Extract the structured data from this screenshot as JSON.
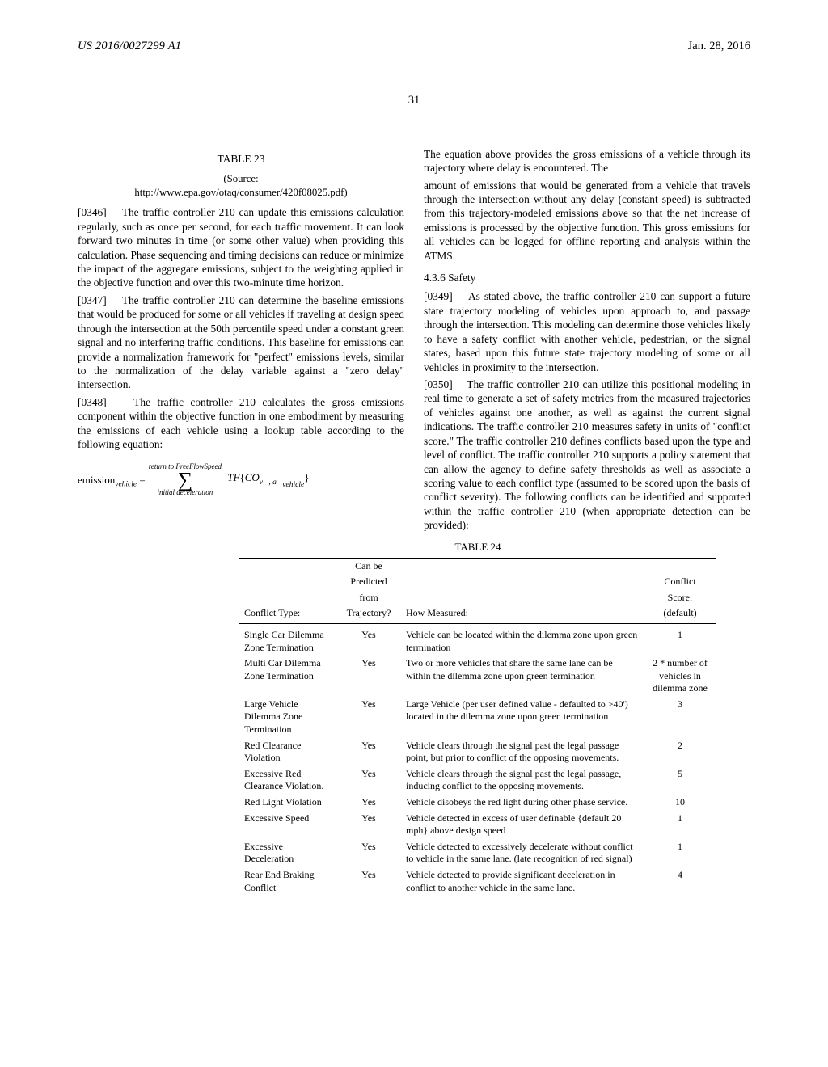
{
  "header": {
    "publication": "US 2016/0027299 A1",
    "date": "Jan. 28, 2016",
    "page_number": "31"
  },
  "left_col": {
    "table23_heading": "TABLE 23",
    "source_label": "(Source:",
    "source_url": "http://www.epa.gov/otaq/consumer/420f08025.pdf)",
    "p0346_num": "[0346]",
    "p0346": "The traffic controller 210 can update this emissions calculation regularly, such as once per second, for each traffic movement. It can look forward two minutes in time (or some other value) when providing this calculation. Phase sequencing and timing decisions can reduce or minimize the impact of the aggregate emissions, subject to the weighting applied in the objective function and over this two-minute time horizon.",
    "p0347_num": "[0347]",
    "p0347": "The traffic controller 210 can determine the baseline emissions that would be produced for some or all vehicles if traveling at design speed through the intersection at the 50th percentile speed under a constant green signal and no interfering traffic conditions. This baseline for emissions can provide a normalization framework for \"perfect\" emissions levels, similar to the normalization of the delay variable against a \"zero delay\" intersection.",
    "p0348_num": "[0348]",
    "p0348": "The traffic controller 210 calculates the gross emissions component within the objective function in one embodiment by measuring the emissions of each vehicle using a lookup table according to the following equation:",
    "eq_lhs_text": "emission",
    "eq_lhs_sub": "vehicle",
    "eq_equals": " = ",
    "eq_sum_top": "return to FreeFlowSpeed",
    "eq_sum_bottom": "initial deceleration",
    "eq_TF": "TF",
    "eq_CO": "CO",
    "eq_CO_sub": "v⃗, a⃗",
    "eq_CO_sub2": "vehicle",
    "p_after_eq": "The equation above provides the gross emissions of a vehicle through its trajectory where delay is encountered. The"
  },
  "right_col": {
    "p_cont": "amount of emissions that would be generated from a vehicle that travels through the intersection without any delay (constant speed) is subtracted from this trajectory-modeled emissions above so that the net increase of emissions is processed by the objective function. This gross emissions for all vehicles can be logged for offline reporting and analysis within the ATMS.",
    "safety_heading": "4.3.6 Safety",
    "p0349_num": "[0349]",
    "p0349": "As stated above, the traffic controller 210 can support a future state trajectory modeling of vehicles upon approach to, and passage through the intersection. This modeling can determine those vehicles likely to have a safety conflict with another vehicle, pedestrian, or the signal states, based upon this future state trajectory modeling of some or all vehicles in proximity to the intersection.",
    "p0350_num": "[0350]",
    "p0350": "The traffic controller 210 can utilize this positional modeling in real time to generate a set of safety metrics from the measured trajectories of vehicles against one another, as well as against the current signal indications. The traffic controller 210 measures safety in units of \"conflict score.\" The traffic controller 210 defines conflicts based upon the type and level of conflict. The traffic controller 210 supports a policy statement that can allow the agency to define safety thresholds as well as associate a scoring value to each conflict type (assumed to be scored upon the basis of conflict severity). The following conflicts can be identified and supported within the traffic controller 210 (when appropriate detection can be provided):"
  },
  "table24": {
    "title": "TABLE 24",
    "head": {
      "c1": "Conflict Type:",
      "c2a": "Can be",
      "c2b": "Predicted",
      "c2c": "from",
      "c2d": "Trajectory?",
      "c3": "How Measured:",
      "c4a": "Conflict",
      "c4b": "Score:",
      "c4c": "(default)"
    },
    "rows": [
      {
        "c1": "Single Car Dilemma Zone Termination",
        "c2": "Yes",
        "c3": "Vehicle can be located within the dilemma zone upon green termination",
        "c4": "1"
      },
      {
        "c1": "Multi Car Dilemma Zone Termination",
        "c2": "Yes",
        "c3": "Two or more vehicles that share the same lane can be within the dilemma zone upon green termination",
        "c4": "2 * number of vehicles in dilemma zone"
      },
      {
        "c1": "Large Vehicle Dilemma Zone Termination",
        "c2": "Yes",
        "c3": "Large Vehicle (per user defined value - defaulted to >40') located in the dilemma zone upon green termination",
        "c4": "3"
      },
      {
        "c1": "Red Clearance Violation",
        "c2": "Yes",
        "c3": "Vehicle clears through the signal past the legal passage point, but prior to conflict of the opposing movements.",
        "c4": "2"
      },
      {
        "c1": "Excessive Red Clearance Violation.",
        "c2": "Yes",
        "c3": "Vehicle clears through the signal past the legal passage, inducing conflict to the opposing movements.",
        "c4": "5"
      },
      {
        "c1": "Red Light Violation",
        "c2": "Yes",
        "c3": "Vehicle disobeys the red light during other phase service.",
        "c4": "10"
      },
      {
        "c1": "Excessive Speed",
        "c2": "Yes",
        "c3": "Vehicle detected in excess of user definable {default 20 mph} above design speed",
        "c4": "1"
      },
      {
        "c1": "Excessive Deceleration",
        "c2": "Yes",
        "c3": "Vehicle detected to excessively decelerate without conflict to vehicle in the same lane. (late recognition of red signal)",
        "c4": "1"
      },
      {
        "c1": "Rear End Braking Conflict",
        "c2": "Yes",
        "c3": "Vehicle detected to provide significant deceleration in conflict to another vehicle in the same lane.",
        "c4": "4"
      }
    ]
  }
}
